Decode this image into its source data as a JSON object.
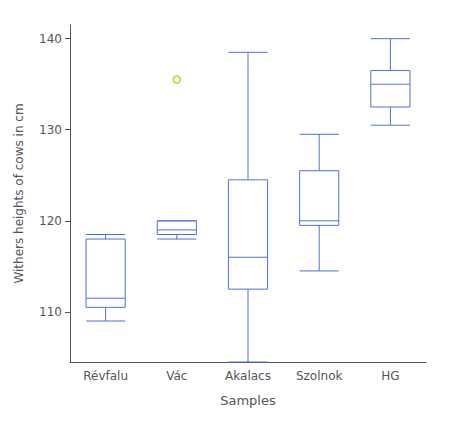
{
  "chart_data": {
    "type": "box",
    "categories": [
      "Révfalu",
      "Vác",
      "Akalacs",
      "Szolnok",
      "HG"
    ],
    "boxes": [
      {
        "q1": 110.5,
        "median": 111.5,
        "q3": 118.0,
        "whisker_low": 109.0,
        "whisker_high": 118.5,
        "fliers": []
      },
      {
        "q1": 118.5,
        "median": 119.0,
        "q3": 120.0,
        "whisker_low": 118.0,
        "whisker_high": 120.0,
        "fliers": [
          135.5
        ]
      },
      {
        "q1": 112.5,
        "median": 116.0,
        "q3": 124.5,
        "whisker_low": 104.5,
        "whisker_high": 138.5,
        "fliers": []
      },
      {
        "q1": 119.5,
        "median": 120.0,
        "q3": 125.5,
        "whisker_low": 114.5,
        "whisker_high": 129.5,
        "fliers": []
      },
      {
        "q1": 132.5,
        "median": 135.0,
        "q3": 136.5,
        "whisker_low": 130.5,
        "whisker_high": 140.0,
        "fliers": []
      }
    ],
    "ylabel": "Withers heights of cows in cm",
    "xlabel": "Samples",
    "ylim": [
      104.5,
      141.5
    ],
    "yticks": [
      110,
      120,
      130,
      140
    ],
    "grid": false
  }
}
